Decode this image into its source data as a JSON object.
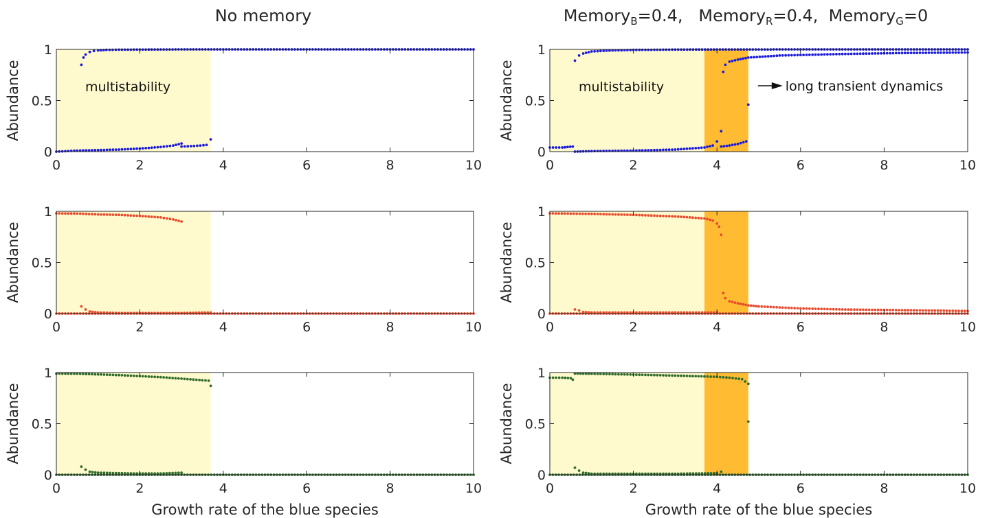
{
  "chart_data": [
    {
      "type": "scatter",
      "column_title": "No memory",
      "ylabel": "Abundance",
      "xlabel": "",
      "xlim": [
        0,
        10
      ],
      "ylim": [
        0,
        1
      ],
      "xticks": [
        "0",
        "2",
        "4",
        "6",
        "8",
        "10"
      ],
      "yticks": [
        "0",
        "0.5",
        "1"
      ],
      "color": "#1a1adb",
      "shaded_regions": [
        {
          "label": "multistability",
          "from": 0,
          "to": 3.7,
          "color": "#fffacd"
        }
      ],
      "annotation": "multistability",
      "series": [
        {
          "x": [
            0.6,
            0.65,
            0.7,
            0.8,
            0.9,
            1.0,
            1.2,
            1.5,
            2.0,
            2.5,
            3.0,
            3.5,
            4.0,
            6.0,
            8.0,
            10.0
          ],
          "y": [
            0.85,
            0.92,
            0.95,
            0.975,
            0.985,
            0.99,
            0.995,
            0.997,
            0.998,
            0.999,
            1.0,
            1.0,
            1.0,
            1.0,
            1.0,
            1.0
          ]
        },
        {
          "x": [
            0.0,
            0.5,
            1.0,
            1.5,
            2.0,
            2.5,
            2.8,
            3.0
          ],
          "y": [
            0.0,
            0.01,
            0.015,
            0.02,
            0.03,
            0.045,
            0.06,
            0.08
          ]
        },
        {
          "x": [
            3.0,
            3.3,
            3.6,
            3.7
          ],
          "y": [
            0.05,
            0.055,
            0.065,
            0.12
          ]
        }
      ]
    },
    {
      "type": "scatter",
      "column_title": "Memory_B=0.4,   Memory_R=0.4,  Memory_G=0",
      "ylabel": "Abundance",
      "xlabel": "",
      "xlim": [
        0,
        10
      ],
      "ylim": [
        0,
        1
      ],
      "xticks": [
        "0",
        "2",
        "4",
        "6",
        "8",
        "10"
      ],
      "yticks": [
        "0",
        "0.5",
        "1"
      ],
      "color": "#1a1adb",
      "shaded_regions": [
        {
          "label": "multistability",
          "from": 0,
          "to": 3.7,
          "color": "#fffacd"
        },
        {
          "label": "long transient dynamics",
          "from": 3.7,
          "to": 4.75,
          "color": "#ffbc33"
        }
      ],
      "annotation": "multistability",
      "annotation2": "long transient dynamics",
      "series": [
        {
          "x": [
            0.6,
            0.7,
            0.8,
            1.0,
            1.5,
            2.0,
            3.0,
            4.0,
            6.0,
            8.0,
            10.0
          ],
          "y": [
            0.89,
            0.94,
            0.96,
            0.98,
            0.99,
            0.995,
            0.998,
            0.999,
            1.0,
            1.0,
            1.0
          ]
        },
        {
          "x": [
            4.15,
            4.2,
            4.3,
            4.5,
            4.75,
            5.5,
            7.0,
            8.5,
            10.0
          ],
          "y": [
            0.78,
            0.85,
            0.88,
            0.9,
            0.92,
            0.94,
            0.955,
            0.965,
            0.97
          ]
        },
        {
          "x": [
            0.0,
            0.3,
            0.55
          ],
          "y": [
            0.04,
            0.04,
            0.05
          ]
        },
        {
          "x": [
            0.6,
            1.0,
            2.0,
            3.0,
            3.7,
            3.9,
            4.0,
            4.1
          ],
          "y": [
            0.0,
            0.005,
            0.01,
            0.02,
            0.04,
            0.06,
            0.1,
            0.2
          ]
        },
        {
          "x": [
            4.1,
            4.3,
            4.5,
            4.7
          ],
          "y": [
            0.05,
            0.06,
            0.075,
            0.1
          ]
        },
        {
          "x": [
            4.75
          ],
          "y": [
            0.46
          ]
        }
      ]
    },
    {
      "type": "scatter",
      "column_title": "",
      "ylabel": "Abundance",
      "xlabel": "",
      "xlim": [
        0,
        10
      ],
      "ylim": [
        0,
        1
      ],
      "xticks": [
        "0",
        "2",
        "4",
        "6",
        "8",
        "10"
      ],
      "yticks": [
        "0",
        "0.5",
        "1"
      ],
      "color": "#e84a2e",
      "shaded_regions": [
        {
          "label": "multistability",
          "from": 0,
          "to": 3.7,
          "color": "#fffacd"
        }
      ],
      "series": [
        {
          "x": [
            0.0,
            0.5,
            1.0,
            1.5,
            2.0,
            2.5,
            2.8,
            3.0
          ],
          "y": [
            0.98,
            0.978,
            0.97,
            0.965,
            0.955,
            0.94,
            0.92,
            0.9
          ]
        },
        {
          "x": [
            0.6,
            0.7,
            0.8,
            1.0,
            1.5,
            2.0,
            3.0,
            3.7
          ],
          "y": [
            0.07,
            0.04,
            0.02,
            0.01,
            0.005,
            0.005,
            0.005,
            0.01
          ]
        },
        {
          "x": [
            0.0,
            2.0,
            4.0,
            6.0,
            8.0,
            10.0
          ],
          "y": [
            0.0,
            0.0,
            0.0,
            0.0,
            0.0,
            0.0
          ]
        }
      ]
    },
    {
      "type": "scatter",
      "column_title": "",
      "ylabel": "Abundance",
      "xlabel": "",
      "xlim": [
        0,
        10
      ],
      "ylim": [
        0,
        1
      ],
      "xticks": [
        "0",
        "2",
        "4",
        "6",
        "8",
        "10"
      ],
      "yticks": [
        "0",
        "0.5",
        "1"
      ],
      "color": "#e84a2e",
      "shaded_regions": [
        {
          "label": "multistability",
          "from": 0,
          "to": 3.7,
          "color": "#fffacd"
        },
        {
          "label": "long transient dynamics",
          "from": 3.7,
          "to": 4.75,
          "color": "#ffbc33"
        }
      ],
      "series": [
        {
          "x": [
            0.0,
            1.0,
            2.0,
            3.0,
            3.7,
            3.9,
            4.0,
            4.05
          ],
          "y": [
            0.98,
            0.975,
            0.965,
            0.95,
            0.93,
            0.91,
            0.88,
            0.85
          ]
        },
        {
          "x": [
            4.1
          ],
          "y": [
            0.77
          ]
        },
        {
          "x": [
            0.6,
            0.7,
            0.8,
            1.0,
            2.0,
            3.0,
            4.0
          ],
          "y": [
            0.04,
            0.03,
            0.015,
            0.01,
            0.01,
            0.01,
            0.01
          ]
        },
        {
          "x": [
            4.15,
            4.2,
            4.3,
            4.5,
            4.75,
            5.0,
            6.0,
            7.0,
            8.0,
            9.0,
            10.0
          ],
          "y": [
            0.2,
            0.15,
            0.12,
            0.1,
            0.08,
            0.07,
            0.05,
            0.04,
            0.035,
            0.03,
            0.025
          ]
        },
        {
          "x": [
            0.0,
            2.0,
            4.0,
            6.0,
            8.0,
            10.0
          ],
          "y": [
            0.0,
            0.0,
            0.0,
            0.0,
            0.0,
            0.0
          ]
        }
      ]
    },
    {
      "type": "scatter",
      "column_title": "",
      "ylabel": "Abundance",
      "xlabel": "Growth rate of the blue species",
      "xlim": [
        0,
        10
      ],
      "ylim": [
        0,
        1
      ],
      "xticks": [
        "0",
        "2",
        "4",
        "6",
        "8",
        "10"
      ],
      "yticks": [
        "0",
        "0.5",
        "1"
      ],
      "color": "#2e6b2e",
      "shaded_regions": [
        {
          "label": "multistability",
          "from": 0,
          "to": 3.7,
          "color": "#fffacd"
        }
      ],
      "series": [
        {
          "x": [
            0.0,
            0.5,
            1.0,
            1.5,
            2.0,
            2.5,
            3.0,
            3.5,
            3.65
          ],
          "y": [
            0.99,
            0.988,
            0.982,
            0.975,
            0.965,
            0.955,
            0.94,
            0.925,
            0.92
          ]
        },
        {
          "x": [
            3.7
          ],
          "y": [
            0.87
          ]
        },
        {
          "x": [
            0.6,
            0.7,
            0.8,
            1.0,
            1.5,
            2.0,
            2.5,
            3.0
          ],
          "y": [
            0.08,
            0.05,
            0.03,
            0.02,
            0.015,
            0.012,
            0.012,
            0.02
          ]
        },
        {
          "x": [
            0.0,
            2.0,
            4.0,
            6.0,
            8.0,
            10.0
          ],
          "y": [
            0.0,
            0.0,
            0.0,
            0.0,
            0.0,
            0.0
          ]
        }
      ]
    },
    {
      "type": "scatter",
      "column_title": "",
      "ylabel": "Abundance",
      "xlabel": "Growth rate of the blue species",
      "xlim": [
        0,
        10
      ],
      "ylim": [
        0,
        1
      ],
      "xticks": [
        "0",
        "2",
        "4",
        "6",
        "8",
        "10"
      ],
      "yticks": [
        "0",
        "0.5",
        "1"
      ],
      "color": "#2e6b2e",
      "shaded_regions": [
        {
          "label": "multistability",
          "from": 0,
          "to": 3.7,
          "color": "#fffacd"
        },
        {
          "label": "long transient dynamics",
          "from": 3.7,
          "to": 4.75,
          "color": "#ffbc33"
        }
      ],
      "series": [
        {
          "x": [
            0.0,
            0.3,
            0.5,
            0.55
          ],
          "y": [
            0.95,
            0.95,
            0.945,
            0.93
          ]
        },
        {
          "x": [
            0.6,
            1.0,
            2.0,
            3.0,
            3.7,
            4.0,
            4.3,
            4.6,
            4.75
          ],
          "y": [
            0.99,
            0.988,
            0.98,
            0.97,
            0.962,
            0.958,
            0.95,
            0.935,
            0.89
          ]
        },
        {
          "x": [
            4.75
          ],
          "y": [
            0.52
          ]
        },
        {
          "x": [
            0.6,
            0.7,
            0.8,
            1.0,
            2.0,
            3.0,
            4.0,
            4.1
          ],
          "y": [
            0.07,
            0.04,
            0.02,
            0.01,
            0.01,
            0.01,
            0.015,
            0.03
          ]
        },
        {
          "x": [
            0.0,
            2.0,
            4.0,
            6.0,
            8.0,
            10.0
          ],
          "y": [
            0.0,
            0.0,
            0.0,
            0.0,
            0.0,
            0.0
          ]
        }
      ]
    }
  ],
  "figure": {
    "left_title": "No memory",
    "right_title_prefix": "Memory",
    "sub_B": "B",
    "val_B": "=0.4,   ",
    "sub_R": "R",
    "val_R": "=0.4,  ",
    "sub_G": "G",
    "val_G": "=0"
  }
}
